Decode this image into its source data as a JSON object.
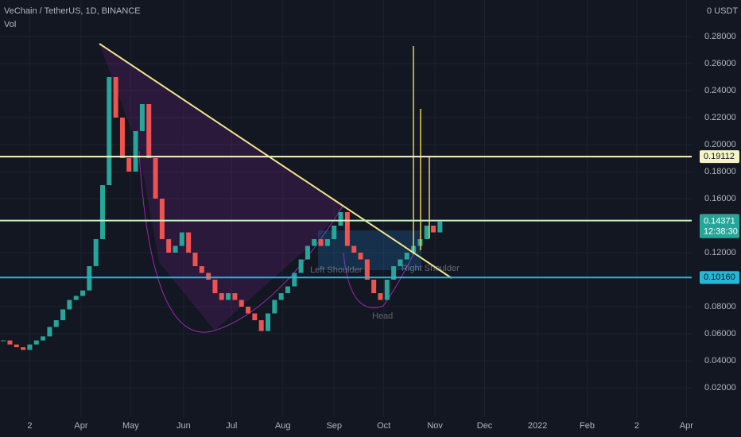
{
  "chart_data": {
    "type": "candlestick",
    "title": "VeChain / TetherUS, 1D, BINANCE",
    "subtitle": "Vol",
    "axis_header": "0 USDT",
    "up_color": "#26a69a",
    "down_color": "#ef5350",
    "xlim": [
      0,
      448
    ],
    "xticks": [
      {
        "value": 18,
        "label": "2"
      },
      {
        "value": 49,
        "label": "Apr"
      },
      {
        "value": 79,
        "label": "May"
      },
      {
        "value": 111,
        "label": "Jun"
      },
      {
        "value": 140,
        "label": "Jul"
      },
      {
        "value": 171,
        "label": "Aug"
      },
      {
        "value": 202,
        "label": "Sep"
      },
      {
        "value": 232,
        "label": "Oct"
      },
      {
        "value": 263,
        "label": "Nov"
      },
      {
        "value": 293,
        "label": "Dec"
      },
      {
        "value": 325,
        "label": "2022"
      },
      {
        "value": 355,
        "label": "Feb"
      },
      {
        "value": 385,
        "label": "2"
      },
      {
        "value": 415,
        "label": "Apr"
      }
    ],
    "ylim": [
      0,
      0.30706
    ],
    "yticks": [
      {
        "value": 0.02,
        "label": "0.02000"
      },
      {
        "value": 0.04,
        "label": "0.04000"
      },
      {
        "value": 0.06,
        "label": "0.06000"
      },
      {
        "value": 0.08,
        "label": "0.08000"
      },
      {
        "value": 0.12,
        "label": "0.12000"
      },
      {
        "value": 0.16,
        "label": "0.16000"
      },
      {
        "value": 0.18,
        "label": "0.18000"
      },
      {
        "value": 0.2,
        "label": "0.20000"
      },
      {
        "value": 0.22,
        "label": "0.22000"
      },
      {
        "value": 0.24,
        "label": "0.24000"
      },
      {
        "value": 0.26,
        "label": "0.26000"
      },
      {
        "value": 0.28,
        "label": "0.28000"
      }
    ],
    "grid": true,
    "x": [
      2,
      6,
      10,
      14,
      18,
      22,
      26,
      30,
      34,
      38,
      42,
      46,
      50,
      54,
      58,
      62,
      66,
      70,
      74,
      78,
      82,
      86,
      90,
      94,
      98,
      102,
      106,
      110,
      114,
      118,
      122,
      126,
      130,
      134,
      138,
      142,
      146,
      150,
      154,
      158,
      162,
      166,
      170,
      174,
      178,
      182,
      186,
      190,
      194,
      198,
      202,
      206,
      210,
      214,
      218,
      222,
      226,
      230,
      234,
      238,
      242,
      246,
      250,
      254,
      258,
      262,
      266
    ],
    "values": [
      0.055,
      0.052,
      0.05,
      0.048,
      0.052,
      0.055,
      0.058,
      0.065,
      0.07,
      0.078,
      0.085,
      0.088,
      0.092,
      0.11,
      0.13,
      0.17,
      0.25,
      0.22,
      0.19,
      0.18,
      0.21,
      0.23,
      0.19,
      0.16,
      0.13,
      0.12,
      0.125,
      0.135,
      0.12,
      0.11,
      0.105,
      0.1,
      0.09,
      0.085,
      0.09,
      0.085,
      0.08,
      0.075,
      0.07,
      0.062,
      0.075,
      0.085,
      0.09,
      0.095,
      0.105,
      0.115,
      0.125,
      0.13,
      0.125,
      0.13,
      0.14,
      0.15,
      0.125,
      0.12,
      0.115,
      0.1,
      0.09,
      0.085,
      0.1,
      0.11,
      0.115,
      0.12,
      0.125,
      0.13,
      0.14,
      0.135,
      0.143
    ],
    "levels": [
      {
        "value": 0.19112,
        "color": "#f5f5c8"
      },
      {
        "value": 0.14378,
        "color": "#c8f0c0"
      },
      {
        "value": 0.1016,
        "label": "0.10160",
        "color": "#22b8d8"
      }
    ],
    "last_price": 0.14371,
    "countdown": "12:38:30",
    "annotations": [
      "Left Shoulder",
      "Right Shoulder",
      "Head"
    ]
  }
}
